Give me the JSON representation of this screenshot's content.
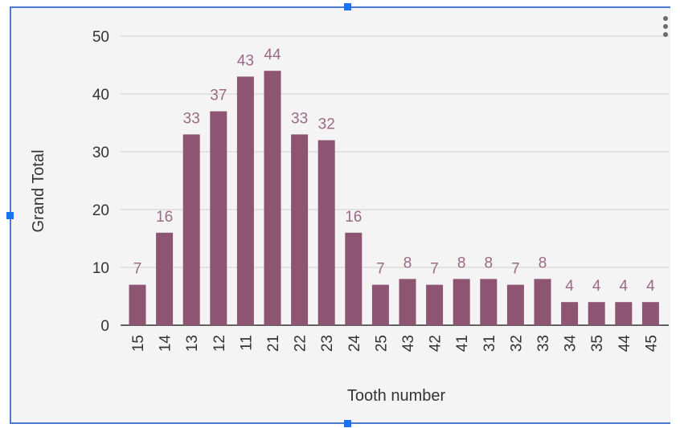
{
  "chart_data": {
    "type": "bar",
    "categories": [
      "15",
      "14",
      "13",
      "12",
      "11",
      "21",
      "22",
      "23",
      "24",
      "25",
      "43",
      "42",
      "41",
      "31",
      "32",
      "33",
      "34",
      "35",
      "44",
      "45"
    ],
    "values": [
      7,
      16,
      33,
      37,
      43,
      44,
      33,
      32,
      16,
      7,
      8,
      7,
      8,
      8,
      7,
      8,
      4,
      4,
      4,
      4
    ],
    "xlabel": "Tooth number",
    "ylabel": "Grand Total",
    "ylim": [
      0,
      50
    ],
    "yticks": [
      0,
      10,
      20,
      30,
      40,
      50
    ],
    "grid": true,
    "data_labels": true,
    "colors": {
      "bar": "#8e5572",
      "data_label": "#9b6a84",
      "grid": "#cfcfcf",
      "text": "#333333"
    }
  },
  "ui": {
    "menu_icon": "more-vert-icon",
    "selection_color": "#1a73e8"
  }
}
